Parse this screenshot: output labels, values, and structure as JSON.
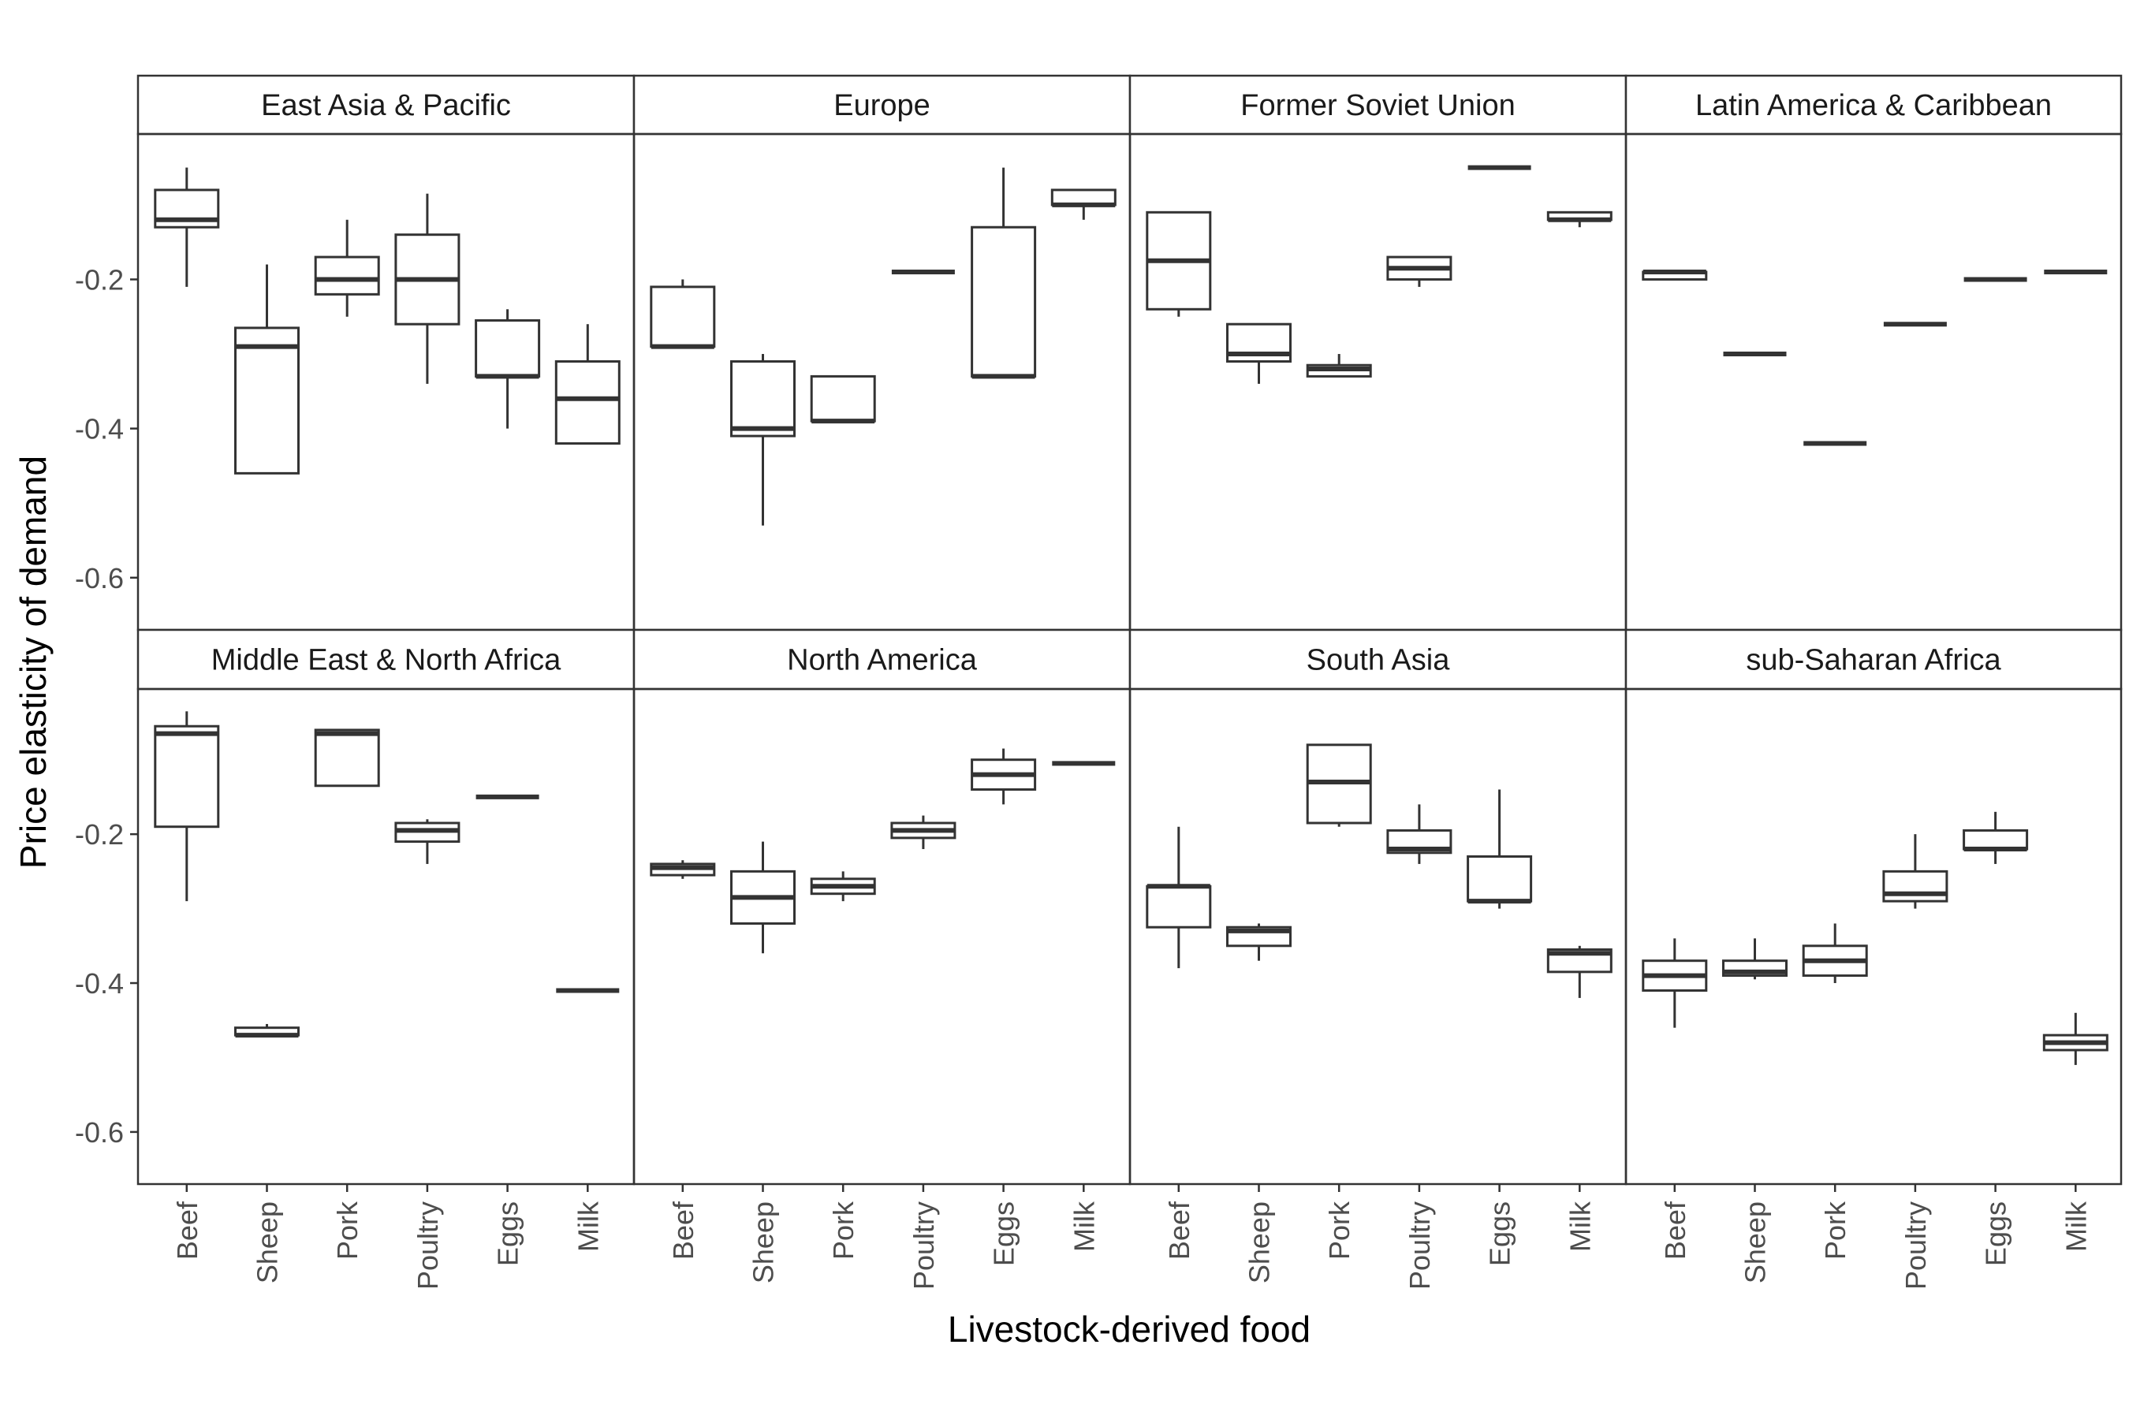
{
  "chart_data": {
    "type": "boxplot",
    "facet_layout": "4 columns x 2 rows, shared axes",
    "xlabel": "Livestock-derived food",
    "ylabel": "Price elasticity of demand",
    "categories": [
      "Beef",
      "Sheep",
      "Pork",
      "Poultry",
      "Eggs",
      "Milk"
    ],
    "ylim": [
      -0.67,
      -0.005
    ],
    "yticks": [
      -0.2,
      -0.4,
      -0.6
    ],
    "ytick_labels": [
      "-0.2",
      "-0.4",
      "-0.6"
    ],
    "grid": false,
    "colors": {
      "box_stroke": "#333333",
      "panel_border": "#333333",
      "strip_fill": "#ffffff"
    },
    "panels": [
      {
        "title": "East Asia & Pacific",
        "boxes": [
          {
            "category": "Beef",
            "min": -0.21,
            "q1": -0.13,
            "median": -0.12,
            "q3": -0.08,
            "max": -0.05
          },
          {
            "category": "Sheep",
            "min": -0.46,
            "q1": -0.46,
            "median": -0.29,
            "q3": -0.265,
            "max": -0.18
          },
          {
            "category": "Pork",
            "min": -0.25,
            "q1": -0.22,
            "median": -0.2,
            "q3": -0.17,
            "max": -0.12
          },
          {
            "category": "Poultry",
            "min": -0.34,
            "q1": -0.26,
            "median": -0.2,
            "q3": -0.14,
            "max": -0.085
          },
          {
            "category": "Eggs",
            "min": -0.4,
            "q1": -0.33,
            "median": -0.33,
            "q3": -0.255,
            "max": -0.24
          },
          {
            "category": "Milk",
            "min": -0.42,
            "q1": -0.42,
            "median": -0.36,
            "q3": -0.31,
            "max": -0.26
          }
        ]
      },
      {
        "title": "Europe",
        "boxes": [
          {
            "category": "Beef",
            "min": -0.29,
            "q1": -0.29,
            "median": -0.29,
            "q3": -0.21,
            "max": -0.2
          },
          {
            "category": "Sheep",
            "min": -0.53,
            "q1": -0.41,
            "median": -0.4,
            "q3": -0.31,
            "max": -0.3
          },
          {
            "category": "Pork",
            "min": -0.39,
            "q1": -0.39,
            "median": -0.39,
            "q3": -0.33,
            "max": -0.33
          },
          {
            "category": "Poultry",
            "min": -0.19,
            "q1": -0.19,
            "median": -0.19,
            "q3": -0.19,
            "max": -0.19
          },
          {
            "category": "Eggs",
            "min": -0.33,
            "q1": -0.33,
            "median": -0.33,
            "q3": -0.13,
            "max": -0.05
          },
          {
            "category": "Milk",
            "min": -0.12,
            "q1": -0.1,
            "median": -0.1,
            "q3": -0.08,
            "max": -0.08
          }
        ]
      },
      {
        "title": "Former Soviet Union",
        "boxes": [
          {
            "category": "Beef",
            "min": -0.25,
            "q1": -0.24,
            "median": -0.175,
            "q3": -0.11,
            "max": -0.11
          },
          {
            "category": "Sheep",
            "min": -0.34,
            "q1": -0.31,
            "median": -0.3,
            "q3": -0.26,
            "max": -0.26
          },
          {
            "category": "Pork",
            "min": -0.33,
            "q1": -0.33,
            "median": -0.32,
            "q3": -0.315,
            "max": -0.3
          },
          {
            "category": "Poultry",
            "min": -0.21,
            "q1": -0.2,
            "median": -0.185,
            "q3": -0.17,
            "max": -0.17
          },
          {
            "category": "Eggs",
            "min": -0.05,
            "q1": -0.05,
            "median": -0.05,
            "q3": -0.05,
            "max": -0.05
          },
          {
            "category": "Milk",
            "min": -0.13,
            "q1": -0.12,
            "median": -0.12,
            "q3": -0.11,
            "max": -0.11
          }
        ]
      },
      {
        "title": "Latin America & Caribbean",
        "boxes": [
          {
            "category": "Beef",
            "min": -0.2,
            "q1": -0.2,
            "median": -0.19,
            "q3": -0.19,
            "max": -0.19
          },
          {
            "category": "Sheep",
            "min": -0.3,
            "q1": -0.3,
            "median": -0.3,
            "q3": -0.3,
            "max": -0.3
          },
          {
            "category": "Pork",
            "min": -0.42,
            "q1": -0.42,
            "median": -0.42,
            "q3": -0.42,
            "max": -0.42
          },
          {
            "category": "Poultry",
            "min": -0.26,
            "q1": -0.26,
            "median": -0.26,
            "q3": -0.26,
            "max": -0.26
          },
          {
            "category": "Eggs",
            "min": -0.2,
            "q1": -0.2,
            "median": -0.2,
            "q3": -0.2,
            "max": -0.2
          },
          {
            "category": "Milk",
            "min": -0.19,
            "q1": -0.19,
            "median": -0.19,
            "q3": -0.19,
            "max": -0.19
          }
        ]
      },
      {
        "title": "Middle East & North Africa",
        "boxes": [
          {
            "category": "Beef",
            "min": -0.29,
            "q1": -0.19,
            "median": -0.065,
            "q3": -0.055,
            "max": -0.035
          },
          {
            "category": "Sheep",
            "min": -0.47,
            "q1": -0.47,
            "median": -0.47,
            "q3": -0.46,
            "max": -0.455
          },
          {
            "category": "Pork",
            "min": -0.135,
            "q1": -0.135,
            "median": -0.065,
            "q3": -0.06,
            "max": -0.06
          },
          {
            "category": "Poultry",
            "min": -0.24,
            "q1": -0.21,
            "median": -0.195,
            "q3": -0.185,
            "max": -0.18
          },
          {
            "category": "Eggs",
            "min": -0.15,
            "q1": -0.15,
            "median": -0.15,
            "q3": -0.15,
            "max": -0.15
          },
          {
            "category": "Milk",
            "min": -0.41,
            "q1": -0.41,
            "median": -0.41,
            "q3": -0.41,
            "max": -0.41
          }
        ]
      },
      {
        "title": "North America",
        "boxes": [
          {
            "category": "Beef",
            "min": -0.26,
            "q1": -0.255,
            "median": -0.245,
            "q3": -0.24,
            "max": -0.235
          },
          {
            "category": "Sheep",
            "min": -0.36,
            "q1": -0.32,
            "median": -0.285,
            "q3": -0.25,
            "max": -0.21
          },
          {
            "category": "Pork",
            "min": -0.29,
            "q1": -0.28,
            "median": -0.27,
            "q3": -0.26,
            "max": -0.25
          },
          {
            "category": "Poultry",
            "min": -0.22,
            "q1": -0.205,
            "median": -0.195,
            "q3": -0.185,
            "max": -0.175
          },
          {
            "category": "Eggs",
            "min": -0.16,
            "q1": -0.14,
            "median": -0.12,
            "q3": -0.1,
            "max": -0.085
          },
          {
            "category": "Milk",
            "min": -0.105,
            "q1": -0.105,
            "median": -0.105,
            "q3": -0.105,
            "max": -0.105
          }
        ]
      },
      {
        "title": "South Asia",
        "boxes": [
          {
            "category": "Beef",
            "min": -0.38,
            "q1": -0.325,
            "median": -0.27,
            "q3": -0.27,
            "max": -0.19
          },
          {
            "category": "Sheep",
            "min": -0.37,
            "q1": -0.35,
            "median": -0.33,
            "q3": -0.325,
            "max": -0.32
          },
          {
            "category": "Pork",
            "min": -0.19,
            "q1": -0.185,
            "median": -0.13,
            "q3": -0.08,
            "max": -0.08
          },
          {
            "category": "Poultry",
            "min": -0.24,
            "q1": -0.225,
            "median": -0.22,
            "q3": -0.195,
            "max": -0.16
          },
          {
            "category": "Eggs",
            "min": -0.3,
            "q1": -0.29,
            "median": -0.29,
            "q3": -0.23,
            "max": -0.14
          },
          {
            "category": "Milk",
            "min": -0.42,
            "q1": -0.385,
            "median": -0.36,
            "q3": -0.355,
            "max": -0.35
          }
        ]
      },
      {
        "title": "sub-Saharan Africa",
        "boxes": [
          {
            "category": "Beef",
            "min": -0.46,
            "q1": -0.41,
            "median": -0.39,
            "q3": -0.37,
            "max": -0.34
          },
          {
            "category": "Sheep",
            "min": -0.395,
            "q1": -0.39,
            "median": -0.385,
            "q3": -0.37,
            "max": -0.34
          },
          {
            "category": "Pork",
            "min": -0.4,
            "q1": -0.39,
            "median": -0.37,
            "q3": -0.35,
            "max": -0.32
          },
          {
            "category": "Poultry",
            "min": -0.3,
            "q1": -0.29,
            "median": -0.28,
            "q3": -0.25,
            "max": -0.2
          },
          {
            "category": "Eggs",
            "min": -0.24,
            "q1": -0.22,
            "median": -0.22,
            "q3": -0.195,
            "max": -0.17
          },
          {
            "category": "Milk",
            "min": -0.51,
            "q1": -0.49,
            "median": -0.48,
            "q3": -0.47,
            "max": -0.44
          }
        ]
      }
    ]
  }
}
